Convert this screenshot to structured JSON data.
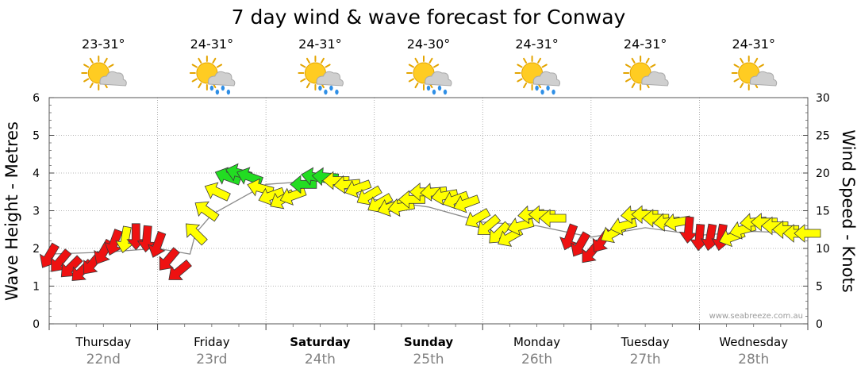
{
  "chart_data": {
    "type": "line",
    "title": "7 day wind & wave forecast for Conway",
    "ylabel_left": "Wave Height - Metres",
    "ylabel_right": "Wind Speed - Knots",
    "ylim_left": [
      0,
      6
    ],
    "ylim_right": [
      0,
      30
    ],
    "yticks_left": [
      "0",
      "1",
      "2",
      "3",
      "4",
      "5",
      "6"
    ],
    "yticks_right": [
      "0",
      "5",
      "10",
      "15",
      "20",
      "25",
      "30"
    ],
    "grid": true,
    "watermark": "www.seabreeze.com.au",
    "colors": {
      "strong": "#ee1111",
      "medium": "#ffff00",
      "light": "#22dd22",
      "sun": "#ffcc22",
      "cloud": "#cfcfcf",
      "rain": "#2f8fe6",
      "date": "#808080"
    },
    "days": [
      {
        "name": "Thursday",
        "date": "22nd",
        "temp": "23-31°",
        "weather": "partly-cloudy",
        "bold": false
      },
      {
        "name": "Friday",
        "date": "23rd",
        "temp": "24-31°",
        "weather": "showers",
        "bold": false
      },
      {
        "name": "Saturday",
        "date": "24th",
        "temp": "24-31°",
        "weather": "showers",
        "bold": true
      },
      {
        "name": "Sunday",
        "date": "25th",
        "temp": "24-30°",
        "weather": "showers",
        "bold": true
      },
      {
        "name": "Monday",
        "date": "26th",
        "temp": "24-31°",
        "weather": "showers",
        "bold": false
      },
      {
        "name": "Tuesday",
        "date": "27th",
        "temp": "24-31°",
        "weather": "partly-cloudy",
        "bold": false
      },
      {
        "name": "Wednesday",
        "date": "28th",
        "temp": "24-31°",
        "weather": "partly-cloudy",
        "bold": false
      }
    ],
    "wind_knots": [
      {
        "t": 0.0,
        "v": 9.0,
        "dir": 120,
        "level": "strong"
      },
      {
        "t": 0.1,
        "v": 8.3,
        "dir": 130,
        "level": "strong"
      },
      {
        "t": 0.2,
        "v": 7.5,
        "dir": 135,
        "level": "strong"
      },
      {
        "t": 0.3,
        "v": 7.0,
        "dir": 135,
        "level": "strong"
      },
      {
        "t": 0.4,
        "v": 8.0,
        "dir": 130,
        "level": "strong"
      },
      {
        "t": 0.5,
        "v": 9.5,
        "dir": 120,
        "level": "strong"
      },
      {
        "t": 0.6,
        "v": 10.8,
        "dir": 110,
        "level": "strong"
      },
      {
        "t": 0.7,
        "v": 11.2,
        "dir": 100,
        "level": "yellow_or_red"
      },
      {
        "t": 0.8,
        "v": 11.6,
        "dir": 90,
        "level": "strong"
      },
      {
        "t": 0.9,
        "v": 11.3,
        "dir": 95,
        "level": "strong"
      },
      {
        "t": 1.0,
        "v": 10.5,
        "dir": 110,
        "level": "strong"
      },
      {
        "t": 1.1,
        "v": 8.5,
        "dir": 130,
        "level": "strong"
      },
      {
        "t": 1.2,
        "v": 7.0,
        "dir": 140,
        "level": "strong"
      },
      {
        "t": 1.35,
        "v": 12.0,
        "dir": 225,
        "level": "medium"
      },
      {
        "t": 1.45,
        "v": 15.0,
        "dir": 215,
        "level": "medium"
      },
      {
        "t": 1.55,
        "v": 17.5,
        "dir": 205,
        "level": "medium"
      },
      {
        "t": 1.65,
        "v": 19.5,
        "dir": 200,
        "level": "light"
      },
      {
        "t": 1.75,
        "v": 20.0,
        "dir": 195,
        "level": "light"
      },
      {
        "t": 1.85,
        "v": 19.5,
        "dir": 200,
        "level": "light"
      },
      {
        "t": 1.95,
        "v": 18.0,
        "dir": 195,
        "level": "medium"
      },
      {
        "t": 2.05,
        "v": 17.0,
        "dir": 160,
        "level": "medium"
      },
      {
        "t": 2.15,
        "v": 16.5,
        "dir": 150,
        "level": "medium"
      },
      {
        "t": 2.25,
        "v": 17.0,
        "dir": 160,
        "level": "medium"
      },
      {
        "t": 2.35,
        "v": 18.5,
        "dir": 180,
        "level": "light"
      },
      {
        "t": 2.45,
        "v": 19.5,
        "dir": 190,
        "level": "light"
      },
      {
        "t": 2.55,
        "v": 19.5,
        "dir": 185,
        "level": "light"
      },
      {
        "t": 2.65,
        "v": 19.0,
        "dir": 180,
        "level": "medium"
      },
      {
        "t": 2.75,
        "v": 18.5,
        "dir": 175,
        "level": "medium"
      },
      {
        "t": 2.85,
        "v": 18.0,
        "dir": 160,
        "level": "medium"
      },
      {
        "t": 2.95,
        "v": 17.0,
        "dir": 150,
        "level": "medium"
      },
      {
        "t": 3.05,
        "v": 16.0,
        "dir": 150,
        "level": "medium"
      },
      {
        "t": 3.15,
        "v": 15.5,
        "dir": 160,
        "level": "medium"
      },
      {
        "t": 3.25,
        "v": 15.5,
        "dir": 170,
        "level": "medium"
      },
      {
        "t": 3.35,
        "v": 16.5,
        "dir": 180,
        "level": "medium"
      },
      {
        "t": 3.45,
        "v": 17.5,
        "dir": 180,
        "level": "medium"
      },
      {
        "t": 3.55,
        "v": 17.5,
        "dir": 175,
        "level": "medium"
      },
      {
        "t": 3.65,
        "v": 17.0,
        "dir": 170,
        "level": "medium"
      },
      {
        "t": 3.75,
        "v": 16.5,
        "dir": 160,
        "level": "medium"
      },
      {
        "t": 3.85,
        "v": 16.0,
        "dir": 160,
        "level": "medium"
      },
      {
        "t": 3.95,
        "v": 14.0,
        "dir": 150,
        "level": "medium"
      },
      {
        "t": 4.05,
        "v": 13.0,
        "dir": 140,
        "level": "medium"
      },
      {
        "t": 4.15,
        "v": 12.0,
        "dir": 135,
        "level": "medium"
      },
      {
        "t": 4.25,
        "v": 11.5,
        "dir": 150,
        "level": "medium"
      },
      {
        "t": 4.35,
        "v": 13.0,
        "dir": 165,
        "level": "medium"
      },
      {
        "t": 4.45,
        "v": 14.5,
        "dir": 175,
        "level": "medium"
      },
      {
        "t": 4.55,
        "v": 14.5,
        "dir": 180,
        "level": "medium"
      },
      {
        "t": 4.65,
        "v": 14.0,
        "dir": 180,
        "level": "medium"
      },
      {
        "t": 4.8,
        "v": 11.5,
        "dir": 110,
        "level": "strong"
      },
      {
        "t": 4.9,
        "v": 10.5,
        "dir": 120,
        "level": "strong"
      },
      {
        "t": 5.0,
        "v": 9.5,
        "dir": 130,
        "level": "strong"
      },
      {
        "t": 5.1,
        "v": 11.0,
        "dir": 125,
        "level": "strong"
      },
      {
        "t": 5.2,
        "v": 12.0,
        "dir": 150,
        "level": "medium"
      },
      {
        "t": 5.3,
        "v": 13.0,
        "dir": 165,
        "level": "medium"
      },
      {
        "t": 5.4,
        "v": 14.5,
        "dir": 175,
        "level": "medium"
      },
      {
        "t": 5.5,
        "v": 14.5,
        "dir": 180,
        "level": "medium"
      },
      {
        "t": 5.6,
        "v": 14.0,
        "dir": 180,
        "level": "medium"
      },
      {
        "t": 5.7,
        "v": 13.5,
        "dir": 175,
        "level": "medium"
      },
      {
        "t": 5.8,
        "v": 13.5,
        "dir": 170,
        "level": "medium"
      },
      {
        "t": 5.9,
        "v": 12.5,
        "dir": 95,
        "level": "strong"
      },
      {
        "t": 6.0,
        "v": 11.5,
        "dir": 95,
        "level": "strong"
      },
      {
        "t": 6.1,
        "v": 11.5,
        "dir": 100,
        "level": "strong"
      },
      {
        "t": 6.2,
        "v": 11.5,
        "dir": 100,
        "level": "strong"
      },
      {
        "t": 6.3,
        "v": 11.5,
        "dir": 160,
        "level": "medium"
      },
      {
        "t": 6.4,
        "v": 12.5,
        "dir": 165,
        "level": "medium"
      },
      {
        "t": 6.5,
        "v": 13.5,
        "dir": 175,
        "level": "medium"
      },
      {
        "t": 6.6,
        "v": 13.5,
        "dir": 180,
        "level": "medium"
      },
      {
        "t": 6.7,
        "v": 13.0,
        "dir": 180,
        "level": "medium"
      },
      {
        "t": 6.8,
        "v": 12.5,
        "dir": 180,
        "level": "medium"
      },
      {
        "t": 6.9,
        "v": 12.0,
        "dir": 180,
        "level": "medium"
      },
      {
        "t": 7.0,
        "v": 12.0,
        "dir": 180,
        "level": "medium"
      }
    ],
    "wave_metres": [
      {
        "t": 0.0,
        "h": 1.85
      },
      {
        "t": 0.5,
        "h": 1.9
      },
      {
        "t": 1.0,
        "h": 2.0
      },
      {
        "t": 1.3,
        "h": 1.85
      },
      {
        "t": 1.35,
        "h": 2.4
      },
      {
        "t": 1.5,
        "h": 2.9
      },
      {
        "t": 2.0,
        "h": 3.7
      },
      {
        "t": 2.5,
        "h": 3.8
      },
      {
        "t": 3.0,
        "h": 3.3
      },
      {
        "t": 3.5,
        "h": 3.1
      },
      {
        "t": 4.0,
        "h": 2.7
      },
      {
        "t": 4.5,
        "h": 2.6
      },
      {
        "t": 5.0,
        "h": 2.3
      },
      {
        "t": 5.5,
        "h": 2.55
      },
      {
        "t": 6.0,
        "h": 2.35
      },
      {
        "t": 6.5,
        "h": 2.45
      },
      {
        "t": 7.0,
        "h": 2.4
      }
    ]
  }
}
